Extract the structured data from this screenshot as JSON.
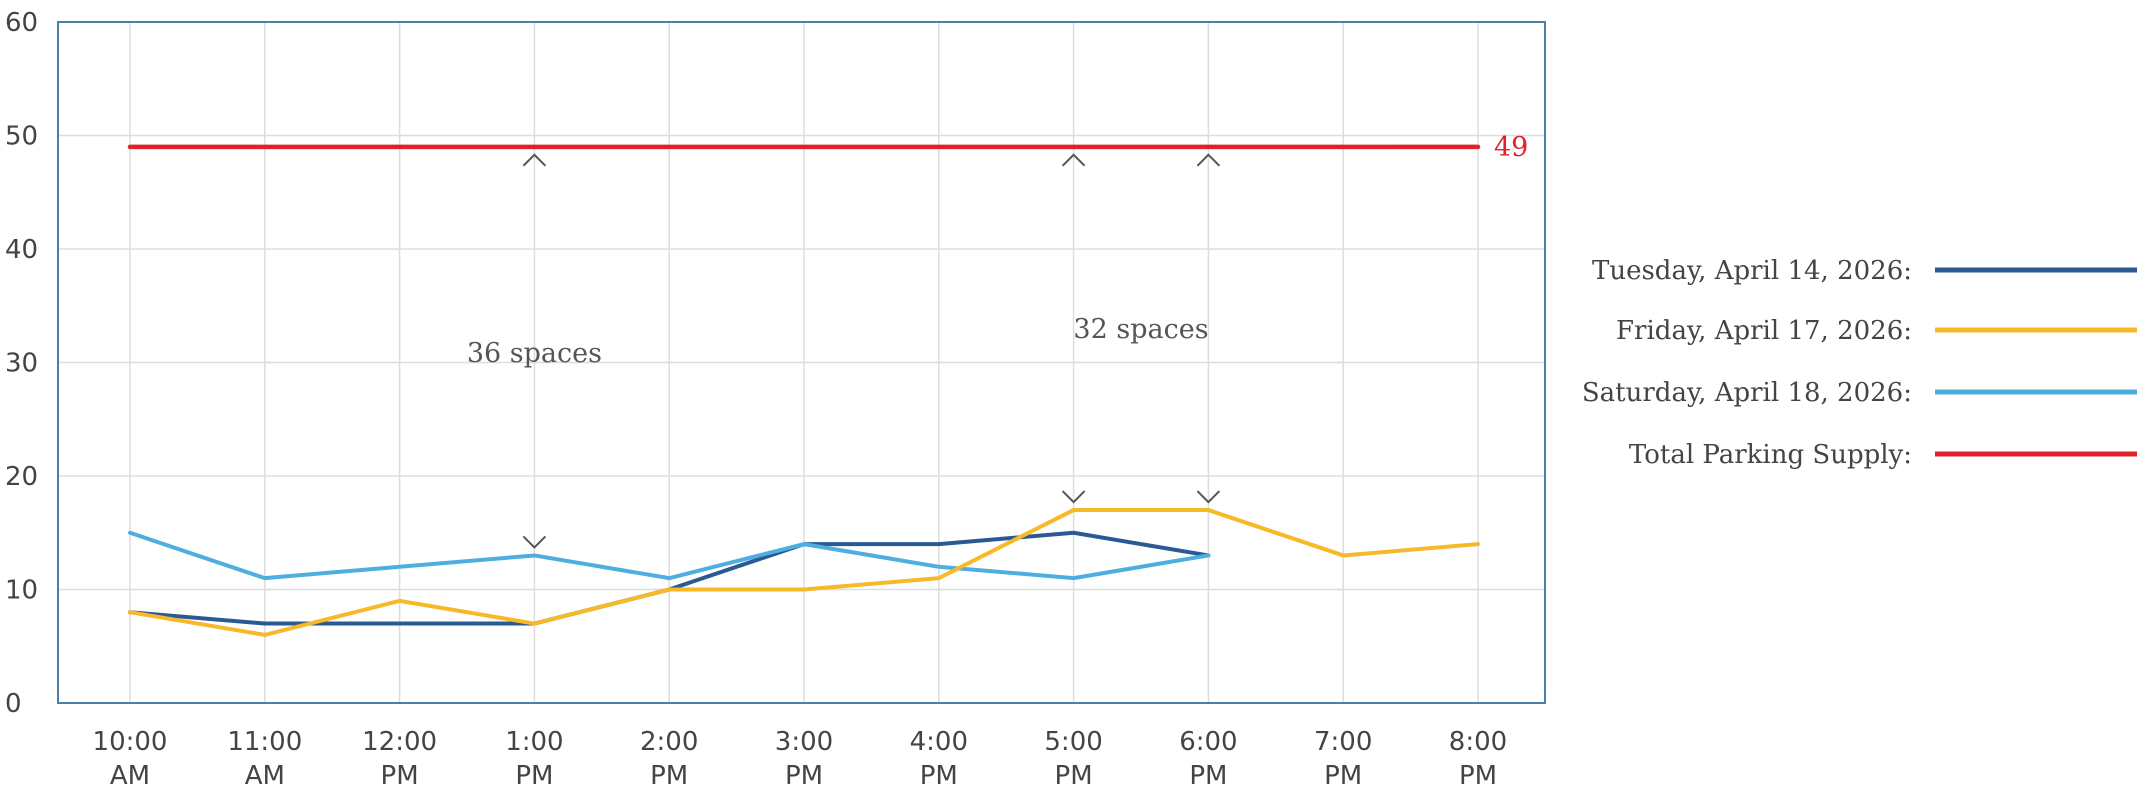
{
  "chart_data": {
    "type": "line",
    "categories": [
      "10:00 AM",
      "11:00 AM",
      "12:00 PM",
      "1:00 PM",
      "2:00 PM",
      "3:00 PM",
      "4:00 PM",
      "5:00 PM",
      "6:00 PM",
      "7:00 PM",
      "8:00 PM"
    ],
    "category_lines": [
      [
        "10:00",
        "AM"
      ],
      [
        "11:00",
        "AM"
      ],
      [
        "12:00",
        "PM"
      ],
      [
        "1:00",
        "PM"
      ],
      [
        "2:00",
        "PM"
      ],
      [
        "3:00",
        "PM"
      ],
      [
        "4:00",
        "PM"
      ],
      [
        "5:00",
        "PM"
      ],
      [
        "6:00",
        "PM"
      ],
      [
        "7:00",
        "PM"
      ],
      [
        "8:00",
        "PM"
      ]
    ],
    "ylim": [
      0,
      60
    ],
    "yticks": [
      0,
      10,
      20,
      30,
      40,
      50,
      60
    ],
    "grid": true,
    "legend_position": "right",
    "series": [
      {
        "name": "Tuesday, April 14, 2026:",
        "color": "#2B5A93",
        "values": [
          8,
          7,
          7,
          7,
          10,
          14,
          14,
          15,
          13,
          null,
          null
        ]
      },
      {
        "name": "Friday, April 17, 2026:",
        "color": "#F7B928",
        "values": [
          8,
          6,
          9,
          7,
          10,
          10,
          11,
          17,
          17,
          13,
          14
        ]
      },
      {
        "name": "Saturday, April 18, 2026:",
        "color": "#4FAEE0",
        "values": [
          15,
          11,
          12,
          13,
          11,
          14,
          12,
          11,
          13,
          null,
          null
        ]
      },
      {
        "name": "Total Parking Supply:",
        "color": "#E0202A",
        "values": [
          49,
          49,
          49,
          49,
          49,
          49,
          49,
          49,
          49,
          49,
          49
        ]
      }
    ],
    "supply_value_label": "49",
    "annotations": [
      {
        "text": "36 spaces",
        "arrows": [
          {
            "category_index": 3,
            "from": 49,
            "to": 13
          }
        ]
      },
      {
        "text": "32 spaces",
        "arrows": [
          {
            "category_index": 7,
            "from": 49,
            "to": 17
          },
          {
            "category_index": 8,
            "from": 49,
            "to": 17
          }
        ]
      }
    ]
  },
  "colors": {
    "gridline": "#dddddd",
    "frame": "#4a7fa6",
    "annotation": "#555555"
  }
}
